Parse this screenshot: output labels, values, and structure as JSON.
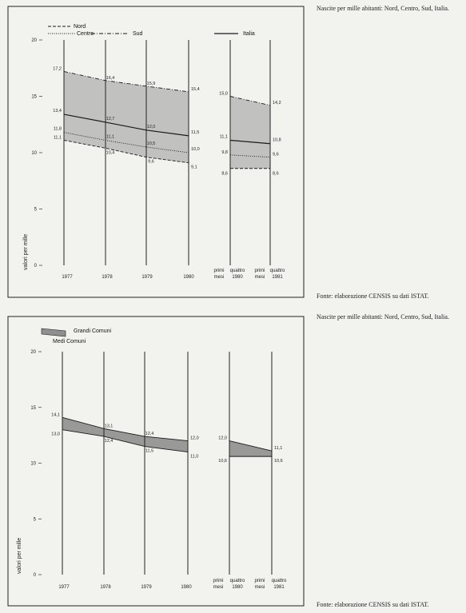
{
  "page": {
    "caption_1": "Nascite per mille abitanti: Nord, Centro, Sud, Italia.",
    "source_1": "Fonte: elaborazione CENSIS su dati ISTAT.",
    "caption_2": "Nascite per mille abitanti: Nord, Centro, Sud, Italia.",
    "source_2": "Fonte: elaborazione CENSIS su dati ISTAT."
  },
  "colors": {
    "band_fill": "#b9b9b7",
    "band_fill_dark": "#8f8f8d",
    "line": "#1a1a1a"
  },
  "chart_data": [
    {
      "type": "line",
      "ylabel": "valori per mille",
      "ylim": [
        0,
        20
      ],
      "yticks": [
        "0",
        "5",
        "10",
        "15",
        "20"
      ],
      "x_labels": [
        {
          "line1": "",
          "line2": "1977"
        },
        {
          "line1": "",
          "line2": "1978"
        },
        {
          "line1": "",
          "line2": "1979"
        },
        {
          "line1": "",
          "line2": "1980"
        },
        {
          "line1": "primi",
          "line2": "mesi"
        },
        {
          "line1": "quattro",
          "line2": "1980"
        },
        {
          "line1": "primi",
          "line2": "mesi"
        },
        {
          "line1": "quattro",
          "line2": "1981"
        }
      ],
      "shade_between": [
        "Nord",
        "Sud"
      ],
      "segments": [
        [
          0,
          1,
          2,
          3
        ],
        [
          4,
          5
        ]
      ],
      "x_positions": [
        "1977",
        "1978",
        "1979",
        "1980",
        "primi quattro mesi 1980",
        "primi quattro mesi 1981"
      ],
      "series": [
        {
          "name": "Nord",
          "dash": "dashed",
          "values": [
            11.1,
            10.4,
            9.6,
            9.1,
            8.6,
            8.6
          ],
          "labels": [
            "11,1",
            "10,4",
            "9,6",
            "9,1",
            "8,6",
            "8,6"
          ]
        },
        {
          "name": "Centro",
          "dash": "dotted",
          "values": [
            11.8,
            11.1,
            10.5,
            10.0,
            9.8,
            9.6
          ],
          "labels": [
            "11,8",
            "11,1",
            "10,5",
            "10,0",
            "9,8",
            "9,6"
          ]
        },
        {
          "name": "Sud",
          "dash": "dashdot",
          "values": [
            17.2,
            16.4,
            15.9,
            15.4,
            15.0,
            14.2
          ],
          "labels": [
            "17,2",
            "16,4",
            "15,9",
            "15,4",
            "15,0",
            "14,2"
          ]
        },
        {
          "name": "Italia",
          "dash": "solid",
          "values": [
            13.4,
            12.7,
            12.0,
            11.5,
            11.1,
            10.8
          ],
          "labels": [
            "13,4",
            "12,7",
            "12,0",
            "11,5",
            "11,1",
            "10,8"
          ]
        }
      ]
    },
    {
      "type": "area",
      "ylabel": "valori per mille",
      "ylim": [
        0,
        20
      ],
      "yticks": [
        "0",
        "5",
        "10",
        "15",
        "20"
      ],
      "x_labels": [
        {
          "line1": "",
          "line2": "1977"
        },
        {
          "line1": "",
          "line2": "1978"
        },
        {
          "line1": "",
          "line2": "1979"
        },
        {
          "line1": "",
          "line2": "1980"
        },
        {
          "line1": "primi",
          "line2": "mesi"
        },
        {
          "line1": "quattro",
          "line2": "1980"
        },
        {
          "line1": "primi",
          "line2": "mesi"
        },
        {
          "line1": "quattro",
          "line2": "1981"
        }
      ],
      "shade_between": [
        "Grandi Comuni",
        "Medi Comuni"
      ],
      "segments": [
        [
          0,
          1,
          2,
          3
        ],
        [
          4,
          5
        ]
      ],
      "x_positions": [
        "1977",
        "1978",
        "1979",
        "1980",
        "primi quattro mesi 1980",
        "primi quattro mesi 1981"
      ],
      "series": [
        {
          "name": "Grandi Comuni",
          "dash": "solid",
          "values": [
            14.1,
            13.1,
            12.4,
            12.0,
            12.0,
            11.1
          ],
          "labels": [
            "14,1",
            "13,1",
            "12,4",
            "12,0",
            "12,0",
            "11,1"
          ]
        },
        {
          "name": "Medi Comuni",
          "dash": "solid",
          "values": [
            13.0,
            12.4,
            11.5,
            11.0,
            10.6,
            10.6
          ],
          "labels": [
            "13,0",
            "12,4",
            "11,5",
            "11,0",
            "10,6",
            "10,6"
          ]
        }
      ]
    }
  ]
}
